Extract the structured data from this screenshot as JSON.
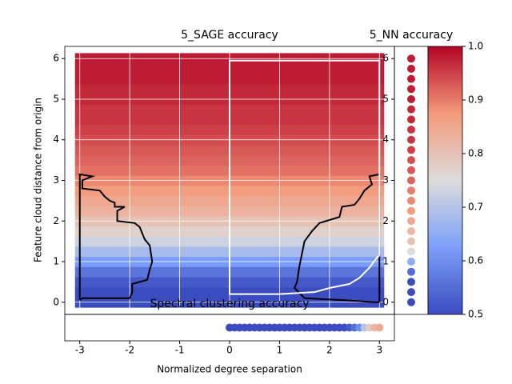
{
  "chart_data": [
    {
      "type": "heatmap",
      "title": "5_SAGE accuracy",
      "ylabel": "Feature cloud distance from origin",
      "xlim": [
        -3.3,
        3.3
      ],
      "ylim": [
        -0.3,
        6.3
      ],
      "xticks": [
        -3,
        -2,
        -1,
        0,
        1,
        2,
        3
      ],
      "yticks": [
        0,
        1,
        2,
        3,
        4,
        5,
        6
      ],
      "grid": true,
      "y": [
        0,
        0.25,
        0.5,
        0.75,
        1,
        1.25,
        1.5,
        1.75,
        2,
        2.25,
        2.5,
        2.75,
        3,
        3.25,
        3.5,
        3.75,
        4,
        4.25,
        4.5,
        4.75,
        5,
        5.25,
        5.5,
        5.75,
        6
      ],
      "values": [
        0.5,
        0.5,
        0.52,
        0.56,
        0.62,
        0.68,
        0.73,
        0.77,
        0.8,
        0.83,
        0.85,
        0.87,
        0.89,
        0.91,
        0.92,
        0.93,
        0.94,
        0.95,
        0.96,
        0.96,
        0.97,
        0.97,
        0.98,
        0.98,
        0.98
      ],
      "contours": [
        {
          "color": "#000000",
          "x": [
            -3,
            -3,
            -2.75,
            -2.95,
            -2.95,
            -2.6,
            -2.5,
            -2.4,
            -2.3,
            -2.3,
            -2.1,
            -2.25,
            -2.25,
            -1.9,
            -1.8,
            -1.7,
            -1.6,
            -1.55,
            -1.6,
            -1.65,
            -1.95,
            -1.95,
            -2.0,
            -2.5,
            -2.95,
            -3
          ],
          "y": [
            0.05,
            3.15,
            3.1,
            3.0,
            2.8,
            2.75,
            2.6,
            2.5,
            2.45,
            2.35,
            2.35,
            2.25,
            2.0,
            1.95,
            1.85,
            1.55,
            1.4,
            1.0,
            0.8,
            0.55,
            0.45,
            0.25,
            0.1,
            0.1,
            0.1,
            0.05
          ]
        },
        {
          "color": "#000000",
          "x": [
            3,
            3,
            2.8,
            2.85,
            2.7,
            2.6,
            2.5,
            2.25,
            2.2,
            1.8,
            1.65,
            1.5,
            1.45,
            1.4,
            1.35,
            1.3,
            1.5,
            2.3,
            2.9,
            3
          ],
          "y": [
            0,
            3.15,
            3.1,
            2.9,
            2.75,
            2.55,
            2.4,
            2.35,
            2.1,
            1.95,
            1.75,
            1.5,
            1.2,
            0.9,
            0.5,
            0.35,
            0.1,
            0.05,
            0,
            0
          ]
        },
        {
          "color": "#ffffff",
          "x": [
            3,
            3,
            0,
            0,
            0.5,
            1.0,
            1.7,
            2.0,
            2.4,
            2.6,
            2.8,
            2.95,
            3
          ],
          "y": [
            1.15,
            5.95,
            5.95,
            0.2,
            0.2,
            0.2,
            0.25,
            0.35,
            0.45,
            0.6,
            0.85,
            1.1,
            1.15
          ]
        }
      ]
    },
    {
      "type": "scatter",
      "title": "5_NN accuracy",
      "xlim": [
        -1,
        1
      ],
      "ylim": [
        -0.3,
        6.3
      ],
      "yticks": [
        0,
        1,
        2,
        3,
        4,
        5,
        6
      ],
      "grid": true,
      "x": [
        0,
        0,
        0,
        0,
        0,
        0,
        0,
        0,
        0,
        0,
        0,
        0,
        0,
        0,
        0,
        0,
        0,
        0,
        0,
        0,
        0,
        0,
        0,
        0,
        0
      ],
      "y": [
        0,
        0.25,
        0.5,
        0.75,
        1,
        1.25,
        1.5,
        1.75,
        2,
        2.25,
        2.5,
        2.75,
        3,
        3.25,
        3.5,
        3.75,
        4,
        4.25,
        4.5,
        4.75,
        5,
        5.25,
        5.5,
        5.75,
        6
      ],
      "values": [
        0.5,
        0.5,
        0.5,
        0.55,
        0.65,
        0.75,
        0.8,
        0.82,
        0.85,
        0.87,
        0.89,
        0.9,
        0.92,
        0.93,
        0.94,
        0.95,
        0.96,
        0.96,
        0.97,
        0.97,
        0.98,
        0.98,
        0.98,
        0.98,
        0.98
      ]
    },
    {
      "type": "scatter",
      "title": "Spectral clustering accuracy",
      "xlabel": "Normalized degree separation",
      "xlim": [
        -3.3,
        3.3
      ],
      "ylim": [
        -1,
        1
      ],
      "xticks": [
        -3,
        -2,
        -1,
        0,
        1,
        2,
        3
      ],
      "x": [
        0,
        0.1,
        0.2,
        0.3,
        0.4,
        0.5,
        0.6,
        0.7,
        0.8,
        0.9,
        1,
        1.1,
        1.2,
        1.3,
        1.4,
        1.5,
        1.6,
        1.7,
        1.8,
        1.9,
        2,
        2.1,
        2.2,
        2.3,
        2.4,
        2.5,
        2.6,
        2.7,
        2.8,
        2.9,
        3
      ],
      "y": [
        0,
        0,
        0,
        0,
        0,
        0,
        0,
        0,
        0,
        0,
        0,
        0,
        0,
        0,
        0,
        0,
        0,
        0,
        0,
        0,
        0,
        0,
        0,
        0,
        0,
        0,
        0,
        0,
        0,
        0,
        0
      ],
      "values": [
        0.5,
        0.5,
        0.5,
        0.5,
        0.5,
        0.5,
        0.5,
        0.5,
        0.5,
        0.5,
        0.5,
        0.5,
        0.5,
        0.5,
        0.5,
        0.5,
        0.5,
        0.5,
        0.5,
        0.5,
        0.5,
        0.5,
        0.5,
        0.5,
        0.52,
        0.55,
        0.6,
        0.7,
        0.78,
        0.82,
        0.85
      ]
    },
    {
      "type": "colorbar",
      "clim": [
        0.5,
        1
      ],
      "colormap": [
        "#3b4cc0",
        "#7b9ff9",
        "#dddcdc",
        "#f49a7b",
        "#b40426"
      ],
      "ticks": [
        0.5,
        0.6,
        0.7,
        0.8,
        0.9,
        {
          "value": 1,
          "label": "1.0"
        }
      ]
    }
  ]
}
